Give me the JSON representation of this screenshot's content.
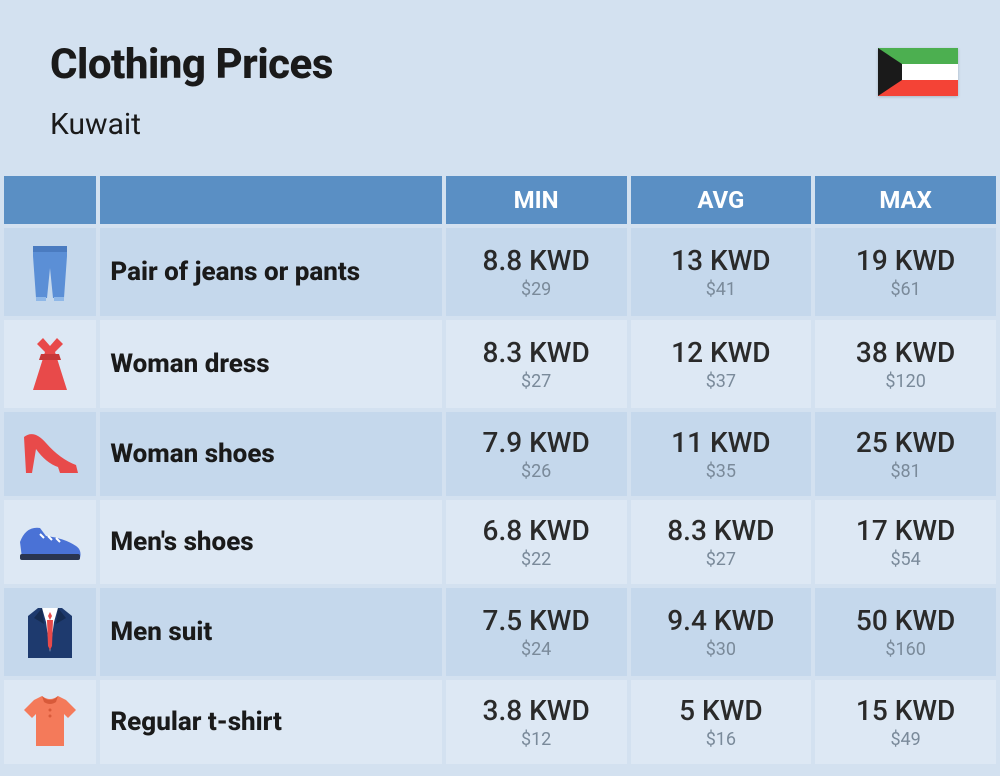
{
  "header": {
    "title": "Clothing Prices",
    "subtitle": "Kuwait"
  },
  "flag": {
    "colors": {
      "green": "#4caf50",
      "white": "#ffffff",
      "red": "#f44336",
      "black": "#1a1a1a"
    }
  },
  "columns": {
    "min": "MIN",
    "avg": "AVG",
    "max": "MAX"
  },
  "table": {
    "header_bg": "#5a8fc4",
    "header_fg": "#ffffff",
    "row_bg": "#c5d8ec",
    "row_alt_bg": "#dde8f4",
    "page_bg": "#d3e1f0",
    "price_main_color": "#2a2a2a",
    "price_sub_color": "#7a8a9a",
    "label_fontsize": 26,
    "price_main_fontsize": 28,
    "price_sub_fontsize": 18
  },
  "rows": [
    {
      "icon": "jeans",
      "label": "Pair of jeans or pants",
      "min": {
        "kwd": "8.8 KWD",
        "usd": "$29"
      },
      "avg": {
        "kwd": "13 KWD",
        "usd": "$41"
      },
      "max": {
        "kwd": "19 KWD",
        "usd": "$61"
      }
    },
    {
      "icon": "dress",
      "label": "Woman dress",
      "min": {
        "kwd": "8.3 KWD",
        "usd": "$27"
      },
      "avg": {
        "kwd": "12 KWD",
        "usd": "$37"
      },
      "max": {
        "kwd": "38 KWD",
        "usd": "$120"
      }
    },
    {
      "icon": "heel",
      "label": "Woman shoes",
      "min": {
        "kwd": "7.9 KWD",
        "usd": "$26"
      },
      "avg": {
        "kwd": "11 KWD",
        "usd": "$35"
      },
      "max": {
        "kwd": "25 KWD",
        "usd": "$81"
      }
    },
    {
      "icon": "sneaker",
      "label": "Men's shoes",
      "min": {
        "kwd": "6.8 KWD",
        "usd": "$22"
      },
      "avg": {
        "kwd": "8.3 KWD",
        "usd": "$27"
      },
      "max": {
        "kwd": "17 KWD",
        "usd": "$54"
      }
    },
    {
      "icon": "suit",
      "label": "Men suit",
      "min": {
        "kwd": "7.5 KWD",
        "usd": "$24"
      },
      "avg": {
        "kwd": "9.4 KWD",
        "usd": "$30"
      },
      "max": {
        "kwd": "50 KWD",
        "usd": "$160"
      }
    },
    {
      "icon": "tshirt",
      "label": "Regular t-shirt",
      "min": {
        "kwd": "3.8 KWD",
        "usd": "$12"
      },
      "avg": {
        "kwd": "5 KWD",
        "usd": "$16"
      },
      "max": {
        "kwd": "15 KWD",
        "usd": "$49"
      }
    }
  ],
  "icon_colors": {
    "jeans": "#5b8fd6",
    "dress": "#e84a4a",
    "heel": "#e84a4a",
    "sneaker": "#4a72d6",
    "suit_jacket": "#1e3a6e",
    "suit_shirt": "#ffffff",
    "suit_tie": "#e84a4a",
    "tshirt": "#f47a5a"
  }
}
